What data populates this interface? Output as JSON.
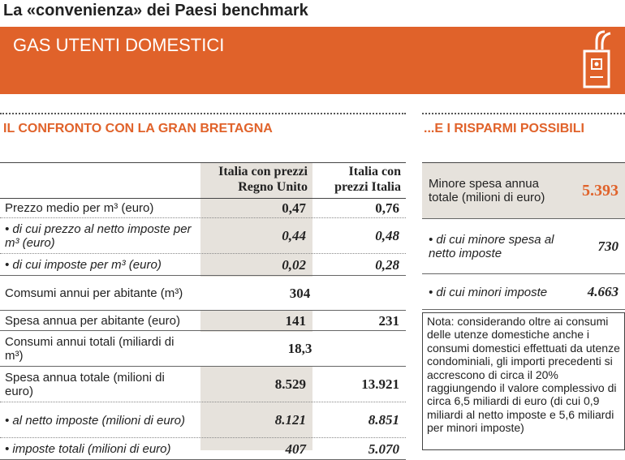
{
  "header": {
    "title": "La «convenienza» dei Paesi benchmark",
    "banner": "GAS UTENTI DOMESTICI"
  },
  "left": {
    "heading": "IL CONFRONTO CON LA GRAN BRETAGNA",
    "columns": [
      "Italia con prezzi Regno Unito",
      "Italia con prezzi Italia"
    ],
    "rows": [
      {
        "label": "Prezzo medio per m³ (euro)",
        "values": [
          "0,47",
          "0,76"
        ]
      },
      {
        "label": "• di cui prezzo al netto imposte per m³ (euro)",
        "values": [
          "0,44",
          "0,48"
        ],
        "italic": true
      },
      {
        "label": "• di cui imposte per m³ (euro)",
        "values": [
          "0,02",
          "0,28"
        ],
        "italic": true
      },
      {
        "label": "Comsumi annui per abitante (m³)",
        "values": [
          "304"
        ]
      },
      {
        "label": "Spesa annua per abitante (euro)",
        "values": [
          "141",
          "231"
        ]
      },
      {
        "label": "Consumi annui totali (miliardi di m³)",
        "values": [
          "18,3"
        ]
      },
      {
        "label": "Spesa annua totale (milioni di euro)",
        "values": [
          "8.529",
          "13.921"
        ]
      },
      {
        "label": "• al netto imposte (milioni di euro)",
        "values": [
          "8.121",
          "8.851"
        ],
        "italic": true
      },
      {
        "label": "• imposte totali (milioni di euro)",
        "values": [
          "407",
          "5.070"
        ],
        "italic": true
      }
    ]
  },
  "right": {
    "heading": "...E I RISPARMI POSSIBILI",
    "rows": [
      {
        "label": "Minore spesa annua totale (milioni di euro)",
        "value": "5.393"
      },
      {
        "label": "• di cui minore spesa al netto imposte",
        "value": "730",
        "italic": true
      },
      {
        "label": "• di cui minori imposte",
        "value": "4.663",
        "italic": true
      }
    ],
    "note": "Nota: considerando oltre ai consumi delle utenze domestiche anche i consumi domestici effettuati da utenze condominiali, gli importi precedenti si accrescono di circa il 20% raggiungendo il valore complessivo di circa 6,5 miliardi di euro (di cui 0,9 miliardi al netto imposte e 5,6 miliardi per minori imposte)"
  }
}
